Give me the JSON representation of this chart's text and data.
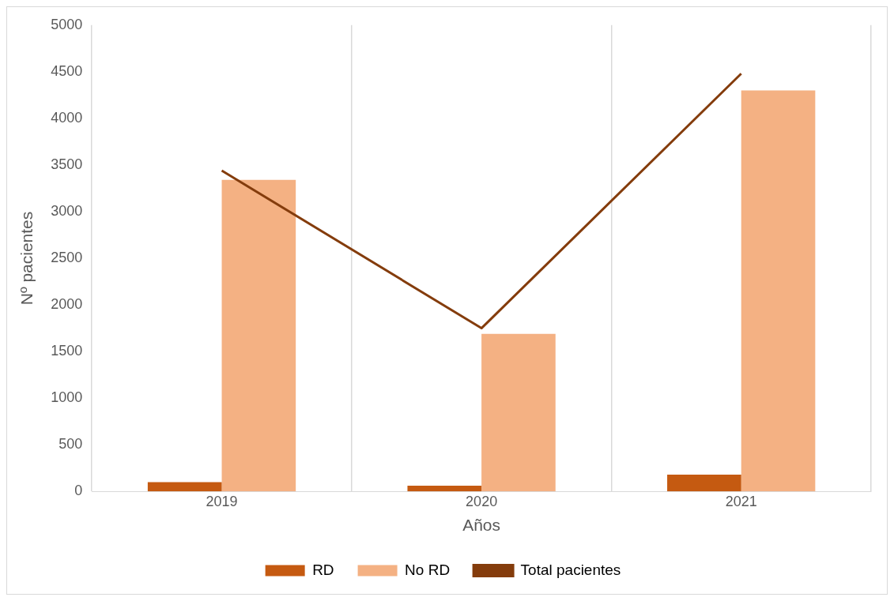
{
  "chart_data": {
    "type": "bar",
    "xlabel": "Años",
    "ylabel": "Nº pacientes",
    "categories": [
      "2019",
      "2020",
      "2021"
    ],
    "series": [
      {
        "name": "RD",
        "color": "#c55a11",
        "values": [
          100,
          60,
          180
        ]
      },
      {
        "name": "No RD",
        "color": "#f4b183",
        "values": [
          3340,
          1690,
          4300
        ]
      },
      {
        "name": "Total pacientes",
        "type": "line",
        "color": "#843c0c",
        "values": [
          3440,
          1750,
          4480
        ]
      }
    ],
    "ylim": [
      0,
      5000
    ],
    "yticks": [
      0,
      500,
      1000,
      1500,
      2000,
      2500,
      3000,
      3500,
      4000,
      4500,
      5000
    ],
    "grid": "x",
    "legend": "bottom",
    "marker": "none",
    "line_style": "solid"
  }
}
